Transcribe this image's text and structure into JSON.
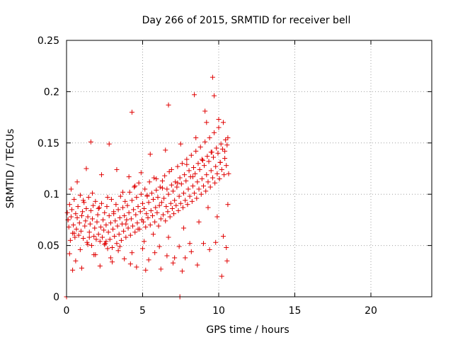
{
  "chart_data": {
    "type": "scatter",
    "title": "Day 266 of 2015, SRMTID for receiver bell",
    "xlabel": "GPS time / hours",
    "ylabel": "SRMTID / TECUs",
    "xlim": [
      0,
      24
    ],
    "ylim": [
      0,
      0.25
    ],
    "grid": true,
    "marker": "+",
    "xticks": [
      0,
      5,
      10,
      15,
      20
    ],
    "yticks": [
      0,
      0.05,
      0.1,
      0.15,
      0.2,
      0.25
    ],
    "xtick_labels": [
      "0",
      "5",
      "10",
      "15",
      "20"
    ],
    "ytick_labels": [
      "0",
      "0.05",
      "0.1",
      "0.15",
      "0.2",
      "0.25"
    ],
    "series": [
      {
        "name": "SRMTID",
        "color": "#e00000",
        "x": [
          0.05,
          0.1,
          0.15,
          0.2,
          0.25,
          0.3,
          0.35,
          0.4,
          0.45,
          0.5,
          0.55,
          0.6,
          0.65,
          0.7,
          0.75,
          0.8,
          0.85,
          0.9,
          0.95,
          1.0,
          1.05,
          1.1,
          1.15,
          1.2,
          1.25,
          1.3,
          1.35,
          1.4,
          1.45,
          1.5,
          1.55,
          1.6,
          1.65,
          1.7,
          1.75,
          1.8,
          1.85,
          1.9,
          1.95,
          2.0,
          2.05,
          2.1,
          2.15,
          2.2,
          2.25,
          2.3,
          2.35,
          2.4,
          2.45,
          2.5,
          2.55,
          2.6,
          2.65,
          2.7,
          2.75,
          2.8,
          2.85,
          2.9,
          2.95,
          3.0,
          3.05,
          3.1,
          3.15,
          3.2,
          3.25,
          3.3,
          3.35,
          3.4,
          3.45,
          3.5,
          3.55,
          3.6,
          3.65,
          3.7,
          3.75,
          3.8,
          3.85,
          3.9,
          3.95,
          4.0,
          4.05,
          4.1,
          4.15,
          4.2,
          4.25,
          4.3,
          4.35,
          4.4,
          4.45,
          4.5,
          4.55,
          4.6,
          4.65,
          4.7,
          4.75,
          4.8,
          4.85,
          4.9,
          4.95,
          5.0,
          5.05,
          5.1,
          5.15,
          5.2,
          5.25,
          5.3,
          5.35,
          5.4,
          5.45,
          5.5,
          5.55,
          5.6,
          5.65,
          5.7,
          5.75,
          5.8,
          5.85,
          5.9,
          5.95,
          6.0,
          6.05,
          6.1,
          6.15,
          6.2,
          6.25,
          6.3,
          6.35,
          6.4,
          6.45,
          6.5,
          6.55,
          6.6,
          6.65,
          6.7,
          6.75,
          6.8,
          6.85,
          6.9,
          6.95,
          7.0,
          7.05,
          7.1,
          7.15,
          7.2,
          7.25,
          7.3,
          7.35,
          7.4,
          7.45,
          7.5,
          7.55,
          7.6,
          7.65,
          7.7,
          7.75,
          7.8,
          7.85,
          7.9,
          7.95,
          8.0,
          8.05,
          8.1,
          8.15,
          8.2,
          8.25,
          8.3,
          8.35,
          8.4,
          8.45,
          8.5,
          8.55,
          8.6,
          8.65,
          8.7,
          8.75,
          8.8,
          8.85,
          8.9,
          8.95,
          9.0,
          9.05,
          9.1,
          9.15,
          9.2,
          9.25,
          9.3,
          9.35,
          9.4,
          9.45,
          9.5,
          9.55,
          9.6,
          9.65,
          9.7,
          9.75,
          9.8,
          9.85,
          9.9,
          9.95,
          10.0,
          10.05,
          10.1,
          10.15,
          10.2,
          10.25,
          10.3,
          10.35,
          10.4,
          10.45,
          10.5,
          10.55,
          10.6,
          10.65,
          0.1,
          0.3,
          0.5,
          0.7,
          0.9,
          1.1,
          1.3,
          1.5,
          1.7,
          1.9,
          2.1,
          2.3,
          2.5,
          2.7,
          2.9,
          3.1,
          3.3,
          3.5,
          3.7,
          3.9,
          4.1,
          4.3,
          4.5,
          4.7,
          4.9,
          5.1,
          5.3,
          5.5,
          5.7,
          5.9,
          6.1,
          6.3,
          6.5,
          6.7,
          6.9,
          7.1,
          7.3,
          7.5,
          7.7,
          7.9,
          8.1,
          8.3,
          8.5,
          8.7,
          8.9,
          9.1,
          9.3,
          9.5,
          9.7,
          9.9,
          10.1,
          10.3,
          10.5,
          0.2,
          0.6,
          1.0,
          1.4,
          1.8,
          2.2,
          2.6,
          3.0,
          3.4,
          3.8,
          4.2,
          4.6,
          5.0,
          5.4,
          5.8,
          6.2,
          6.6,
          7.0,
          7.4,
          7.8,
          8.2,
          8.6,
          9.0,
          9.4,
          9.8,
          10.2,
          10.6,
          1.6,
          4.3,
          6.7,
          8.4,
          9.6,
          10.0,
          10.4,
          0.4,
          2.8,
          5.2,
          7.6,
          9.2,
          10.55,
          0.0,
          7.45
        ],
        "y": [
          0.082,
          0.075,
          0.068,
          0.09,
          0.055,
          0.078,
          0.085,
          0.062,
          0.07,
          0.095,
          0.058,
          0.081,
          0.066,
          0.077,
          0.088,
          0.06,
          0.072,
          0.099,
          0.064,
          0.079,
          0.083,
          0.057,
          0.092,
          0.069,
          0.074,
          0.086,
          0.053,
          0.078,
          0.097,
          0.063,
          0.071,
          0.084,
          0.05,
          0.076,
          0.089,
          0.059,
          0.067,
          0.093,
          0.056,
          0.073,
          0.08,
          0.061,
          0.087,
          0.054,
          0.068,
          0.091,
          0.058,
          0.075,
          0.065,
          0.082,
          0.052,
          0.07,
          0.088,
          0.047,
          0.063,
          0.079,
          0.056,
          0.072,
          0.095,
          0.048,
          0.066,
          0.081,
          0.059,
          0.074,
          0.09,
          0.052,
          0.069,
          0.085,
          0.061,
          0.077,
          0.098,
          0.055,
          0.071,
          0.087,
          0.064,
          0.079,
          0.093,
          0.058,
          0.075,
          0.089,
          0.067,
          0.082,
          0.102,
          0.06,
          0.076,
          0.094,
          0.069,
          0.085,
          0.107,
          0.063,
          0.08,
          0.097,
          0.072,
          0.088,
          0.111,
          0.066,
          0.083,
          0.1,
          0.075,
          0.091,
          0.073,
          0.086,
          0.105,
          0.068,
          0.081,
          0.098,
          0.077,
          0.092,
          0.112,
          0.07,
          0.084,
          0.101,
          0.079,
          0.095,
          0.116,
          0.073,
          0.087,
          0.104,
          0.082,
          0.097,
          0.069,
          0.089,
          0.107,
          0.076,
          0.092,
          0.113,
          0.08,
          0.096,
          0.118,
          0.074,
          0.088,
          0.105,
          0.083,
          0.1,
          0.122,
          0.078,
          0.091,
          0.109,
          0.086,
          0.103,
          0.081,
          0.094,
          0.112,
          0.089,
          0.107,
          0.127,
          0.084,
          0.098,
          0.116,
          0.091,
          0.11,
          0.13,
          0.087,
          0.101,
          0.119,
          0.094,
          0.113,
          0.134,
          0.09,
          0.105,
          0.123,
          0.098,
          0.117,
          0.138,
          0.093,
          0.108,
          0.126,
          0.101,
          0.12,
          0.142,
          0.096,
          0.112,
          0.13,
          0.105,
          0.124,
          0.146,
          0.1,
          0.115,
          0.133,
          0.108,
          0.128,
          0.151,
          0.103,
          0.119,
          0.137,
          0.112,
          0.132,
          0.155,
          0.107,
          0.123,
          0.141,
          0.116,
          0.136,
          0.16,
          0.111,
          0.127,
          0.145,
          0.12,
          0.14,
          0.165,
          0.115,
          0.131,
          0.149,
          0.124,
          0.144,
          0.17,
          0.119,
          0.135,
          0.153,
          0.128,
          0.148,
          0.09,
          0.12,
          0.075,
          0.105,
          0.062,
          0.112,
          0.046,
          0.094,
          0.125,
          0.058,
          0.101,
          0.041,
          0.086,
          0.119,
          0.051,
          0.097,
          0.038,
          0.083,
          0.124,
          0.049,
          0.102,
          0.071,
          0.117,
          0.043,
          0.108,
          0.066,
          0.121,
          0.054,
          0.099,
          0.139,
          0.061,
          0.115,
          0.049,
          0.106,
          0.143,
          0.058,
          0.124,
          0.038,
          0.111,
          0.149,
          0.067,
          0.129,
          0.052,
          0.117,
          0.155,
          0.073,
          0.134,
          0.181,
          0.087,
          0.141,
          0.196,
          0.078,
          0.131,
          0.059,
          0.048,
          0.042,
          0.035,
          0.028,
          0.051,
          0.041,
          0.03,
          0.054,
          0.034,
          0.045,
          0.037,
          0.032,
          0.029,
          0.047,
          0.036,
          0.043,
          0.027,
          0.04,
          0.033,
          0.049,
          0.038,
          0.044,
          0.031,
          0.052,
          0.046,
          0.053,
          0.02,
          0.155,
          0.151,
          0.18,
          0.187,
          0.197,
          0.214,
          0.173,
          0.142,
          0.026,
          0.149,
          0.026,
          0.025,
          0.17,
          0.035,
          0.0,
          0.0
        ]
      }
    ]
  }
}
